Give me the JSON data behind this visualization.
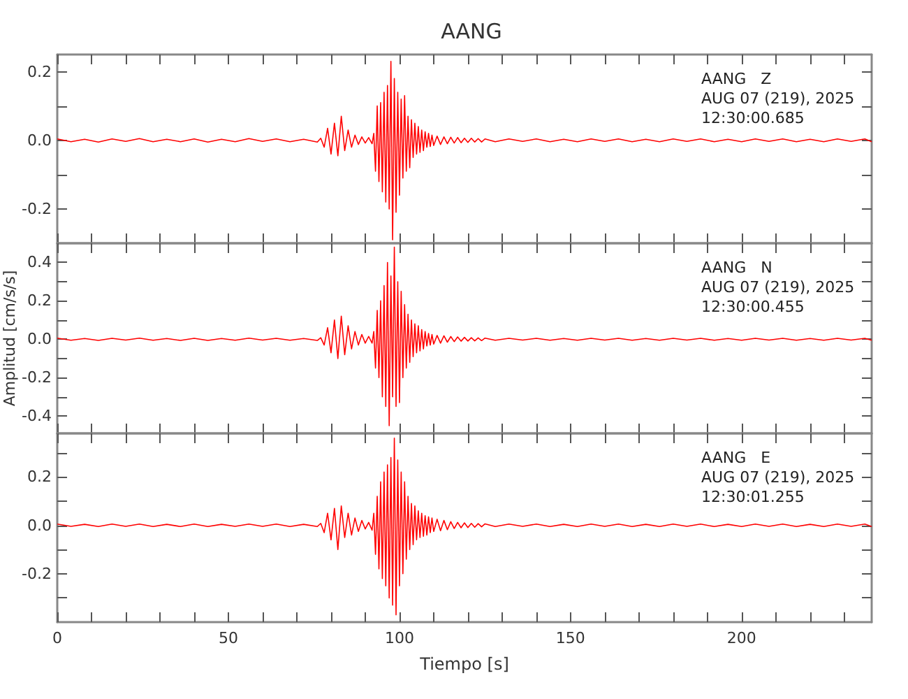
{
  "chart_data": [
    {
      "type": "line",
      "title": "AANG",
      "annotations": [
        "AANG   Z",
        "AUG 07 (219), 2025",
        "12:30:00.685"
      ],
      "tick_labels": "y",
      "xlim": [
        0,
        238
      ],
      "ylim": [
        -0.3,
        0.25
      ],
      "xticks": [
        0,
        {
          "value": 10,
          "label": null
        },
        {
          "value": 20,
          "label": null
        },
        {
          "value": 30,
          "label": null
        },
        {
          "value": 40,
          "label": null
        },
        50,
        {
          "value": 60,
          "label": null
        },
        {
          "value": 70,
          "label": null
        },
        {
          "value": 80,
          "label": null
        },
        {
          "value": 90,
          "label": null
        },
        100,
        {
          "value": 110,
          "label": null
        },
        {
          "value": 120,
          "label": null
        },
        {
          "value": 130,
          "label": null
        },
        {
          "value": 140,
          "label": null
        },
        150,
        {
          "value": 160,
          "label": null
        },
        {
          "value": 170,
          "label": null
        },
        {
          "value": 180,
          "label": null
        },
        {
          "value": 190,
          "label": null
        },
        200,
        {
          "value": 210,
          "label": null
        },
        {
          "value": 220,
          "label": null
        },
        {
          "value": 230,
          "label": null
        }
      ],
      "yticks": [
        -0.2,
        {
          "value": -0.1,
          "label": null
        },
        {
          "value": 0,
          "label": "0.0"
        },
        {
          "value": 0.1,
          "label": null
        },
        0.2
      ],
      "x": [
        0,
        4,
        8,
        12,
        16,
        20,
        24,
        28,
        32,
        36,
        40,
        44,
        48,
        52,
        56,
        60,
        64,
        68,
        72,
        76,
        77,
        78,
        79,
        80,
        81,
        82,
        83,
        84,
        85,
        86,
        87,
        88,
        89,
        90,
        91,
        92,
        92.5,
        93,
        93.5,
        94,
        94.5,
        95,
        95.5,
        96,
        96.5,
        97,
        97.5,
        98,
        98.5,
        99,
        99.5,
        100,
        100.5,
        101,
        101.5,
        102,
        102.5,
        103,
        103.5,
        104,
        104.5,
        105,
        105.5,
        106,
        106.5,
        107,
        107.5,
        108,
        108.5,
        109,
        109.5,
        110,
        111,
        112,
        113,
        114,
        115,
        116,
        117,
        118,
        119,
        120,
        121,
        122,
        123,
        124,
        125,
        128,
        132,
        136,
        140,
        144,
        148,
        152,
        156,
        160,
        164,
        168,
        172,
        176,
        180,
        184,
        188,
        192,
        196,
        200,
        204,
        208,
        212,
        216,
        220,
        224,
        228,
        232,
        236,
        238
      ],
      "series": [
        {
          "color": "#ff0000",
          "values": [
            0.004,
            -0.004,
            0.003,
            -0.005,
            0.004,
            -0.003,
            0.005,
            -0.004,
            0.003,
            -0.004,
            0.004,
            -0.005,
            0.003,
            -0.004,
            0.005,
            -0.003,
            0.004,
            -0.004,
            0.003,
            -0.005,
            0.006,
            -0.02,
            0.035,
            -0.04,
            0.05,
            -0.045,
            0.07,
            -0.03,
            0.03,
            -0.02,
            0.015,
            -0.012,
            0.01,
            -0.008,
            0.008,
            -0.01,
            0.02,
            -0.09,
            0.1,
            -0.12,
            0.11,
            -0.15,
            0.14,
            -0.18,
            0.16,
            -0.2,
            0.23,
            -0.29,
            0.18,
            -0.21,
            0.14,
            -0.16,
            0.12,
            -0.11,
            0.13,
            -0.09,
            0.07,
            -0.08,
            0.06,
            -0.05,
            0.05,
            -0.04,
            0.04,
            -0.035,
            0.03,
            -0.03,
            0.025,
            -0.02,
            0.02,
            -0.018,
            0.015,
            -0.015,
            0.012,
            -0.012,
            0.01,
            -0.01,
            0.009,
            -0.008,
            0.008,
            -0.007,
            0.006,
            -0.006,
            0.006,
            -0.005,
            0.005,
            -0.005,
            0.004,
            -0.004,
            0.004,
            -0.003,
            0.004,
            -0.004,
            0.003,
            -0.004,
            0.004,
            -0.003,
            0.004,
            -0.004,
            0.003,
            -0.004,
            0.004,
            -0.003,
            0.004,
            -0.004,
            0.003,
            -0.004,
            0.004,
            -0.003,
            0.004,
            -0.004,
            0.003,
            -0.004,
            0.004,
            -0.003,
            0.004,
            -0.004
          ]
        }
      ]
    },
    {
      "type": "line",
      "ylabel": "Amplitud [cm/s/s]",
      "annotations": [
        "AANG   N",
        "AUG 07 (219), 2025",
        "12:30:00.455"
      ],
      "tick_labels": "y",
      "xlim": [
        0,
        238
      ],
      "ylim": [
        -0.49,
        0.5
      ],
      "xticks": [
        0,
        {
          "value": 10,
          "label": null
        },
        {
          "value": 20,
          "label": null
        },
        {
          "value": 30,
          "label": null
        },
        {
          "value": 40,
          "label": null
        },
        50,
        {
          "value": 60,
          "label": null
        },
        {
          "value": 70,
          "label": null
        },
        {
          "value": 80,
          "label": null
        },
        {
          "value": 90,
          "label": null
        },
        100,
        {
          "value": 110,
          "label": null
        },
        {
          "value": 120,
          "label": null
        },
        {
          "value": 130,
          "label": null
        },
        {
          "value": 140,
          "label": null
        },
        150,
        {
          "value": 160,
          "label": null
        },
        {
          "value": 170,
          "label": null
        },
        {
          "value": 180,
          "label": null
        },
        {
          "value": 190,
          "label": null
        },
        200,
        {
          "value": 210,
          "label": null
        },
        {
          "value": 220,
          "label": null
        },
        {
          "value": 230,
          "label": null
        }
      ],
      "yticks": [
        -0.4,
        {
          "value": -0.3,
          "label": null
        },
        -0.2,
        {
          "value": -0.1,
          "label": null
        },
        {
          "value": 0,
          "label": "0.0"
        },
        {
          "value": 0.1,
          "label": null
        },
        0.2,
        {
          "value": 0.3,
          "label": null
        },
        0.4
      ],
      "x": [
        0,
        4,
        8,
        12,
        16,
        20,
        24,
        28,
        32,
        36,
        40,
        44,
        48,
        52,
        56,
        60,
        64,
        68,
        72,
        76,
        77,
        78,
        79,
        80,
        81,
        82,
        83,
        84,
        85,
        86,
        87,
        88,
        89,
        90,
        91,
        92,
        92.5,
        93,
        93.5,
        94,
        94.5,
        95,
        95.5,
        96,
        96.5,
        97,
        97.5,
        98,
        98.5,
        99,
        99.5,
        100,
        100.5,
        101,
        101.5,
        102,
        102.5,
        103,
        103.5,
        104,
        104.5,
        105,
        105.5,
        106,
        106.5,
        107,
        107.5,
        108,
        108.5,
        109,
        109.5,
        110,
        111,
        112,
        113,
        114,
        115,
        116,
        117,
        118,
        119,
        120,
        121,
        122,
        123,
        124,
        125,
        128,
        132,
        136,
        140,
        144,
        148,
        152,
        156,
        160,
        164,
        168,
        172,
        176,
        180,
        184,
        188,
        192,
        196,
        200,
        204,
        208,
        212,
        216,
        220,
        224,
        228,
        232,
        236,
        238
      ],
      "series": [
        {
          "color": "#ff0000",
          "values": [
            0.006,
            -0.005,
            0.004,
            -0.006,
            0.005,
            -0.004,
            0.006,
            -0.005,
            0.004,
            -0.006,
            0.005,
            -0.006,
            0.004,
            -0.005,
            0.006,
            -0.004,
            0.005,
            -0.005,
            0.004,
            -0.006,
            0.008,
            -0.03,
            0.06,
            -0.07,
            0.1,
            -0.1,
            0.12,
            -0.08,
            0.07,
            -0.05,
            0.04,
            -0.03,
            0.025,
            -0.02,
            0.015,
            -0.02,
            0.04,
            -0.15,
            0.15,
            -0.2,
            0.2,
            -0.3,
            0.28,
            -0.35,
            0.4,
            -0.45,
            0.33,
            -0.3,
            0.48,
            -0.35,
            0.3,
            -0.33,
            0.25,
            -0.2,
            0.18,
            -0.15,
            0.13,
            -0.12,
            0.1,
            -0.09,
            0.08,
            -0.07,
            0.07,
            -0.06,
            0.05,
            -0.05,
            0.04,
            -0.035,
            0.03,
            -0.03,
            0.025,
            -0.025,
            0.02,
            -0.02,
            0.018,
            -0.015,
            0.014,
            -0.012,
            0.012,
            -0.01,
            0.01,
            -0.009,
            0.008,
            -0.008,
            0.007,
            -0.007,
            0.006,
            -0.005,
            0.005,
            -0.004,
            0.005,
            -0.005,
            0.004,
            -0.005,
            0.005,
            -0.004,
            0.005,
            -0.005,
            0.004,
            -0.005,
            0.005,
            -0.004,
            0.005,
            -0.005,
            0.004,
            -0.005,
            0.005,
            -0.004,
            0.005,
            -0.005,
            0.004,
            -0.005,
            0.005,
            -0.004,
            0.005,
            -0.005
          ]
        }
      ]
    },
    {
      "type": "line",
      "xlabel": "Tiempo [s]",
      "annotations": [
        "AANG   E",
        "AUG 07 (219), 2025",
        "12:30:01.255"
      ],
      "xlim": [
        0,
        238
      ],
      "ylim": [
        -0.4,
        0.38
      ],
      "xticks": [
        0,
        {
          "value": 10,
          "label": null
        },
        {
          "value": 20,
          "label": null
        },
        {
          "value": 30,
          "label": null
        },
        {
          "value": 40,
          "label": null
        },
        50,
        {
          "value": 60,
          "label": null
        },
        {
          "value": 70,
          "label": null
        },
        {
          "value": 80,
          "label": null
        },
        {
          "value": 90,
          "label": null
        },
        100,
        {
          "value": 110,
          "label": null
        },
        {
          "value": 120,
          "label": null
        },
        {
          "value": 130,
          "label": null
        },
        {
          "value": 140,
          "label": null
        },
        150,
        {
          "value": 160,
          "label": null
        },
        {
          "value": 170,
          "label": null
        },
        {
          "value": 180,
          "label": null
        },
        {
          "value": 190,
          "label": null
        },
        200,
        {
          "value": 210,
          "label": null
        },
        {
          "value": 220,
          "label": null
        },
        {
          "value": 230,
          "label": null
        }
      ],
      "yticks": [
        {
          "value": -0.3,
          "label": null
        },
        -0.2,
        {
          "value": -0.1,
          "label": null
        },
        {
          "value": 0,
          "label": "0.0"
        },
        {
          "value": 0.1,
          "label": null
        },
        0.2,
        {
          "value": 0.3,
          "label": null
        }
      ],
      "x": [
        0,
        4,
        8,
        12,
        16,
        20,
        24,
        28,
        32,
        36,
        40,
        44,
        48,
        52,
        56,
        60,
        64,
        68,
        72,
        76,
        77,
        78,
        79,
        80,
        81,
        82,
        83,
        84,
        85,
        86,
        87,
        88,
        89,
        90,
        91,
        92,
        92.5,
        93,
        93.5,
        94,
        94.5,
        95,
        95.5,
        96,
        96.5,
        97,
        97.5,
        98,
        98.5,
        99,
        99.5,
        100,
        100.5,
        101,
        101.5,
        102,
        102.5,
        103,
        103.5,
        104,
        104.5,
        105,
        105.5,
        106,
        106.5,
        107,
        107.5,
        108,
        108.5,
        109,
        109.5,
        110,
        111,
        112,
        113,
        114,
        115,
        116,
        117,
        118,
        119,
        120,
        121,
        122,
        123,
        124,
        125,
        128,
        132,
        136,
        140,
        144,
        148,
        152,
        156,
        160,
        164,
        168,
        172,
        176,
        180,
        184,
        188,
        192,
        196,
        200,
        204,
        208,
        212,
        216,
        220,
        224,
        228,
        232,
        236,
        238
      ],
      "series": [
        {
          "color": "#ff0000",
          "values": [
            0.005,
            -0.004,
            0.004,
            -0.005,
            0.005,
            -0.004,
            0.005,
            -0.005,
            0.004,
            -0.005,
            0.005,
            -0.005,
            0.004,
            -0.004,
            0.005,
            -0.004,
            0.005,
            -0.005,
            0.004,
            -0.005,
            0.008,
            -0.03,
            0.05,
            -0.06,
            0.07,
            -0.1,
            0.08,
            -0.05,
            0.05,
            -0.04,
            0.03,
            -0.025,
            0.02,
            -0.015,
            0.012,
            -0.02,
            0.05,
            -0.12,
            0.12,
            -0.18,
            0.18,
            -0.22,
            0.22,
            -0.25,
            0.25,
            -0.3,
            0.28,
            -0.33,
            0.36,
            -0.37,
            0.27,
            -0.25,
            0.22,
            -0.2,
            0.18,
            -0.14,
            0.12,
            -0.1,
            0.09,
            -0.08,
            0.08,
            -0.06,
            0.06,
            -0.05,
            0.05,
            -0.045,
            0.04,
            -0.04,
            0.035,
            -0.03,
            0.03,
            -0.025,
            0.025,
            -0.022,
            0.02,
            -0.018,
            0.015,
            -0.013,
            0.012,
            -0.01,
            0.01,
            -0.009,
            0.008,
            -0.008,
            0.007,
            -0.006,
            0.006,
            -0.005,
            0.005,
            -0.004,
            0.005,
            -0.005,
            0.004,
            -0.005,
            0.005,
            -0.004,
            0.005,
            -0.005,
            0.004,
            -0.005,
            0.005,
            -0.004,
            0.005,
            -0.005,
            0.004,
            -0.005,
            0.005,
            -0.004,
            0.005,
            -0.005,
            0.004,
            -0.005,
            0.005,
            -0.004,
            0.005,
            -0.005
          ]
        }
      ]
    }
  ]
}
